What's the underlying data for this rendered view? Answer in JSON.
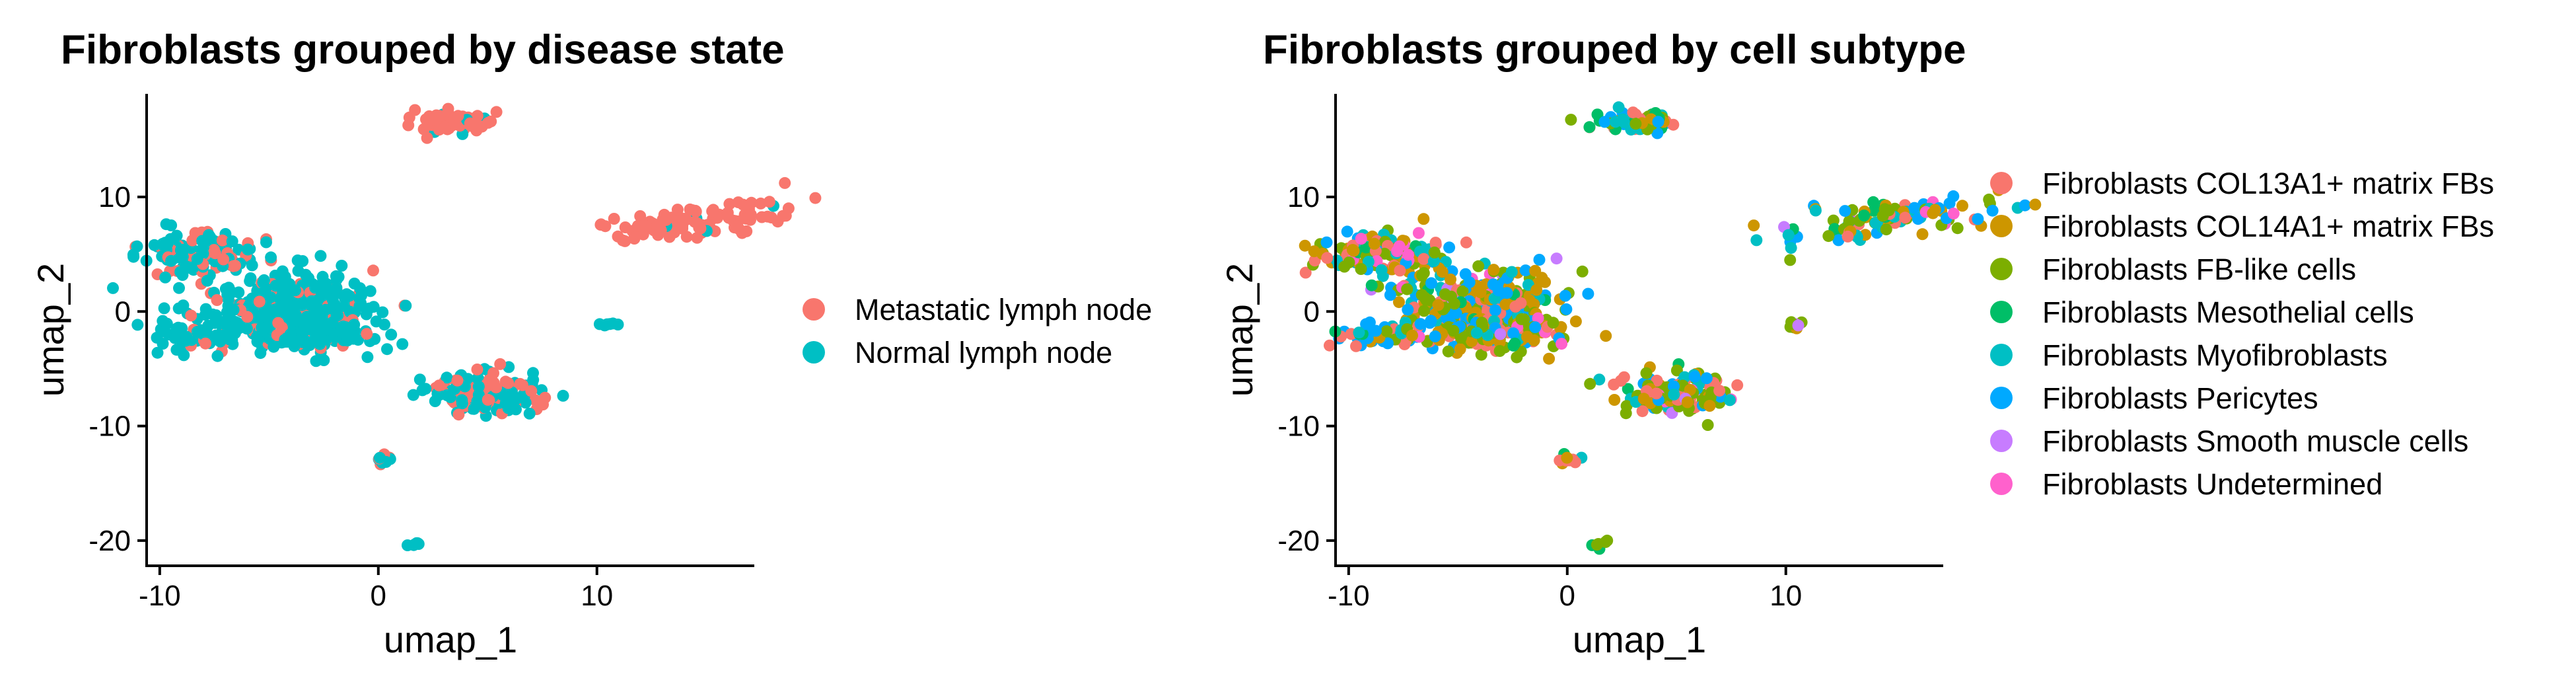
{
  "chart_data": [
    {
      "type": "scatter",
      "title": "Fibroblasts grouped by disease state",
      "xlabel": "umap_1",
      "ylabel": "umap_2",
      "xlim": [
        -10.6,
        17.2
      ],
      "ylim": [
        -22.2,
        19.0
      ],
      "xticks": [
        {
          "value": -10,
          "label": "-10"
        },
        {
          "value": 0,
          "label": "0"
        },
        {
          "value": 10,
          "label": "10"
        }
      ],
      "yticks": [
        {
          "value": 10,
          "label": "10"
        },
        {
          "value": 0,
          "label": "0"
        },
        {
          "value": -10,
          "label": "-10"
        },
        {
          "value": -20,
          "label": "-20"
        }
      ],
      "grid": false,
      "legend_position": "right",
      "series": [
        {
          "name": "Metastatic lymph node",
          "color": "#F8766D"
        },
        {
          "name": "Normal lymph node",
          "color": "#00BFC4"
        }
      ],
      "clusters": [
        {
          "cx": 3.2,
          "cy": 16.6,
          "sx": 0.9,
          "sy": 0.5,
          "n": 70,
          "weights": [
            0.97,
            0.03
          ]
        },
        {
          "cx": 14.5,
          "cy": 7.9,
          "sx": 2.6,
          "sy": 0.8,
          "n": 110,
          "tilt": 0.25,
          "weights": [
            0.98,
            0.02
          ]
        },
        {
          "cx": -8.3,
          "cy": 5.0,
          "sx": 1.4,
          "sy": 0.9,
          "n": 130,
          "weights": [
            0.3,
            0.7
          ]
        },
        {
          "cx": -4.0,
          "cy": 0.5,
          "sx": 1.9,
          "sy": 1.5,
          "n": 320,
          "weights": [
            0.15,
            0.85
          ]
        },
        {
          "cx": -3.5,
          "cy": -2.0,
          "sx": 1.6,
          "sy": 0.8,
          "n": 110,
          "weights": [
            0.15,
            0.85
          ]
        },
        {
          "cx": -8.5,
          "cy": -2.2,
          "sx": 1.2,
          "sy": 0.6,
          "n": 50,
          "weights": [
            0.1,
            0.9
          ]
        },
        {
          "cx": 4.8,
          "cy": -7.1,
          "sx": 1.3,
          "sy": 0.9,
          "n": 150,
          "weights": [
            0.3,
            0.7
          ]
        },
        {
          "cx": 10.5,
          "cy": -1.2,
          "sx": 0.2,
          "sy": 0.2,
          "n": 8,
          "weights": [
            0.0,
            1.0
          ]
        },
        {
          "cx": 0.2,
          "cy": -12.9,
          "sx": 0.3,
          "sy": 0.2,
          "n": 10,
          "weights": [
            0.5,
            0.5
          ]
        },
        {
          "cx": 1.5,
          "cy": -20.2,
          "sx": 0.2,
          "sy": 0.2,
          "n": 6,
          "weights": [
            0.0,
            1.0
          ]
        }
      ]
    },
    {
      "type": "scatter",
      "title": "Fibroblasts grouped by cell subtype",
      "xlabel": "umap_1",
      "ylabel": "umap_2",
      "xlim": [
        -10.6,
        17.2
      ],
      "ylim": [
        -22.2,
        19.0
      ],
      "xticks": [
        {
          "value": -10,
          "label": "-10"
        },
        {
          "value": 0,
          "label": "0"
        },
        {
          "value": 10,
          "label": "10"
        }
      ],
      "yticks": [
        {
          "value": 10,
          "label": "10"
        },
        {
          "value": 0,
          "label": "0"
        },
        {
          "value": -10,
          "label": "-10"
        },
        {
          "value": -20,
          "label": "-20"
        }
      ],
      "grid": false,
      "legend_position": "right",
      "series": [
        {
          "name": "Fibroblasts COL13A1+ matrix FBs",
          "color": "#F8766D"
        },
        {
          "name": "Fibroblasts COL14A1+ matrix FBs",
          "color": "#CD9600"
        },
        {
          "name": "Fibroblasts FB-like cells",
          "color": "#7CAE00"
        },
        {
          "name": "Fibroblasts Mesothelial cells",
          "color": "#00BE67"
        },
        {
          "name": "Fibroblasts Myofibroblasts",
          "color": "#00BFC4"
        },
        {
          "name": "Fibroblasts Pericytes",
          "color": "#00A9FF"
        },
        {
          "name": "Fibroblasts Smooth muscle cells",
          "color": "#C77CFF"
        },
        {
          "name": "Fibroblasts Undetermined",
          "color": "#FF61CC"
        }
      ],
      "clusters": [
        {
          "cx": 3.2,
          "cy": 16.6,
          "sx": 0.9,
          "sy": 0.5,
          "n": 70,
          "weights": [
            0.2,
            0.15,
            0.2,
            0.1,
            0.15,
            0.15,
            0.02,
            0.03
          ]
        },
        {
          "cx": 14.5,
          "cy": 7.9,
          "sx": 2.6,
          "sy": 0.8,
          "n": 110,
          "tilt": 0.25,
          "weights": [
            0.1,
            0.2,
            0.25,
            0.05,
            0.15,
            0.22,
            0.01,
            0.02
          ]
        },
        {
          "cx": -8.3,
          "cy": 5.0,
          "sx": 1.4,
          "sy": 0.9,
          "n": 130,
          "weights": [
            0.18,
            0.2,
            0.2,
            0.05,
            0.15,
            0.14,
            0.03,
            0.05
          ]
        },
        {
          "cx": -4.0,
          "cy": 0.5,
          "sx": 1.9,
          "sy": 1.5,
          "n": 320,
          "weights": [
            0.15,
            0.2,
            0.25,
            0.05,
            0.1,
            0.17,
            0.03,
            0.05
          ]
        },
        {
          "cx": -3.5,
          "cy": -2.0,
          "sx": 1.6,
          "sy": 0.8,
          "n": 110,
          "weights": [
            0.15,
            0.2,
            0.3,
            0.05,
            0.1,
            0.15,
            0.02,
            0.03
          ]
        },
        {
          "cx": -8.5,
          "cy": -2.2,
          "sx": 1.2,
          "sy": 0.6,
          "n": 50,
          "weights": [
            0.25,
            0.05,
            0.1,
            0.05,
            0.1,
            0.4,
            0.02,
            0.03
          ]
        },
        {
          "cx": 4.8,
          "cy": -7.1,
          "sx": 1.3,
          "sy": 0.9,
          "n": 150,
          "weights": [
            0.25,
            0.15,
            0.25,
            0.05,
            0.1,
            0.15,
            0.02,
            0.03
          ]
        },
        {
          "cx": 10.5,
          "cy": -1.2,
          "sx": 0.2,
          "sy": 0.2,
          "n": 8,
          "weights": [
            0.0,
            0.3,
            0.3,
            0.0,
            0.0,
            0.0,
            0.4,
            0.0
          ]
        },
        {
          "cx": 0.2,
          "cy": -12.9,
          "sx": 0.3,
          "sy": 0.2,
          "n": 10,
          "weights": [
            0.3,
            0.2,
            0.0,
            0.2,
            0.3,
            0.0,
            0.0,
            0.0
          ]
        },
        {
          "cx": 1.5,
          "cy": -20.2,
          "sx": 0.2,
          "sy": 0.2,
          "n": 6,
          "weights": [
            0.0,
            0.0,
            0.7,
            0.3,
            0.0,
            0.0,
            0.0,
            0.0
          ]
        }
      ]
    }
  ]
}
